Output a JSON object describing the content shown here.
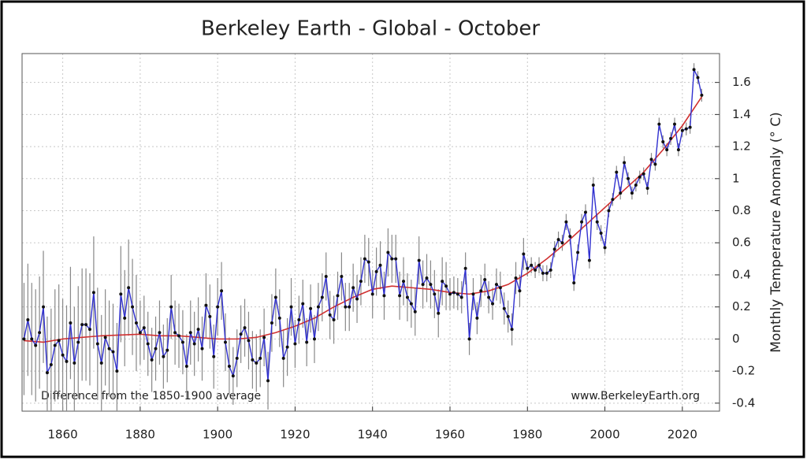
{
  "chart_data": {
    "type": "line",
    "title": "Berkeley Earth - Global - October",
    "ylabel": "Monthly Temperature Anomaly (° C)",
    "annotations": [
      "Difference from the 1850-1900 average",
      "www.BerkeleyEarth.org"
    ],
    "x": [
      1850,
      1851,
      1852,
      1853,
      1854,
      1855,
      1856,
      1857,
      1858,
      1859,
      1860,
      1861,
      1862,
      1863,
      1864,
      1865,
      1866,
      1867,
      1868,
      1869,
      1870,
      1871,
      1872,
      1873,
      1874,
      1875,
      1876,
      1877,
      1878,
      1879,
      1880,
      1881,
      1882,
      1883,
      1884,
      1885,
      1886,
      1887,
      1888,
      1889,
      1890,
      1891,
      1892,
      1893,
      1894,
      1895,
      1896,
      1897,
      1898,
      1899,
      1900,
      1901,
      1902,
      1903,
      1904,
      1905,
      1906,
      1907,
      1908,
      1909,
      1910,
      1911,
      1912,
      1913,
      1914,
      1915,
      1916,
      1917,
      1918,
      1919,
      1920,
      1921,
      1922,
      1923,
      1924,
      1925,
      1926,
      1927,
      1928,
      1929,
      1930,
      1931,
      1932,
      1933,
      1934,
      1935,
      1936,
      1937,
      1938,
      1939,
      1940,
      1941,
      1942,
      1943,
      1944,
      1945,
      1946,
      1947,
      1948,
      1949,
      1950,
      1951,
      1952,
      1953,
      1954,
      1955,
      1956,
      1957,
      1958,
      1959,
      1960,
      1961,
      1962,
      1963,
      1964,
      1965,
      1966,
      1967,
      1968,
      1969,
      1970,
      1971,
      1972,
      1973,
      1974,
      1975,
      1976,
      1977,
      1978,
      1979,
      1980,
      1981,
      1982,
      1983,
      1984,
      1985,
      1986,
      1987,
      1988,
      1989,
      1990,
      1991,
      1992,
      1993,
      1994,
      1995,
      1996,
      1997,
      1998,
      1999,
      2000,
      2001,
      2002,
      2003,
      2004,
      2005,
      2006,
      2007,
      2008,
      2009,
      2010,
      2011,
      2012,
      2013,
      2014,
      2015,
      2016,
      2017,
      2018,
      2019,
      2020,
      2021,
      2022,
      2023,
      2024,
      2025
    ],
    "values": [
      0.0,
      0.12,
      0.0,
      -0.04,
      0.04,
      0.2,
      -0.21,
      -0.16,
      -0.04,
      -0.01,
      -0.1,
      -0.14,
      0.1,
      -0.15,
      -0.02,
      0.09,
      0.09,
      0.06,
      0.29,
      -0.03,
      -0.15,
      0.01,
      -0.06,
      -0.08,
      -0.2,
      0.28,
      0.13,
      0.32,
      0.2,
      0.1,
      0.04,
      0.07,
      -0.03,
      -0.13,
      -0.06,
      0.04,
      -0.11,
      -0.07,
      0.2,
      0.04,
      0.02,
      -0.02,
      -0.17,
      0.04,
      -0.03,
      0.06,
      -0.06,
      0.21,
      0.14,
      -0.11,
      0.2,
      0.3,
      -0.02,
      -0.17,
      -0.23,
      -0.12,
      0.03,
      0.07,
      -0.01,
      -0.13,
      -0.15,
      -0.12,
      0.01,
      -0.26,
      0.1,
      0.26,
      0.13,
      -0.12,
      -0.05,
      0.2,
      -0.03,
      0.12,
      0.22,
      -0.02,
      0.19,
      0.0,
      0.2,
      0.26,
      0.39,
      0.15,
      0.12,
      0.27,
      0.39,
      0.2,
      0.2,
      0.32,
      0.25,
      0.36,
      0.5,
      0.48,
      0.28,
      0.42,
      0.46,
      0.27,
      0.54,
      0.5,
      0.5,
      0.27,
      0.36,
      0.26,
      0.22,
      0.17,
      0.49,
      0.34,
      0.38,
      0.34,
      0.28,
      0.16,
      0.36,
      0.33,
      0.28,
      0.29,
      0.28,
      0.26,
      0.44,
      0.0,
      0.28,
      0.13,
      0.3,
      0.37,
      0.26,
      0.22,
      0.34,
      0.32,
      0.19,
      0.14,
      0.06,
      0.38,
      0.3,
      0.53,
      0.44,
      0.46,
      0.43,
      0.46,
      0.41,
      0.41,
      0.43,
      0.56,
      0.62,
      0.6,
      0.73,
      0.64,
      0.35,
      0.54,
      0.73,
      0.79,
      0.49,
      0.96,
      0.73,
      0.66,
      0.57,
      0.8,
      0.87,
      1.04,
      0.91,
      1.1,
      1.0,
      0.91,
      0.96,
      1.01,
      1.03,
      0.94,
      1.12,
      1.09,
      1.34,
      1.23,
      1.18,
      1.25,
      1.34,
      1.18,
      1.3,
      1.31,
      1.32,
      1.68,
      1.63,
      1.52
    ],
    "errors": [
      0.35,
      0.35,
      0.35,
      0.35,
      0.35,
      0.35,
      0.35,
      0.35,
      0.35,
      0.35,
      0.35,
      0.35,
      0.35,
      0.35,
      0.35,
      0.35,
      0.35,
      0.35,
      0.35,
      0.35,
      0.3,
      0.3,
      0.3,
      0.3,
      0.3,
      0.3,
      0.3,
      0.3,
      0.3,
      0.3,
      0.2,
      0.2,
      0.2,
      0.2,
      0.2,
      0.2,
      0.2,
      0.2,
      0.2,
      0.2,
      0.2,
      0.2,
      0.2,
      0.2,
      0.2,
      0.2,
      0.2,
      0.2,
      0.2,
      0.2,
      0.18,
      0.18,
      0.18,
      0.18,
      0.18,
      0.18,
      0.18,
      0.18,
      0.18,
      0.18,
      0.18,
      0.18,
      0.18,
      0.18,
      0.18,
      0.18,
      0.18,
      0.18,
      0.18,
      0.18,
      0.15,
      0.15,
      0.15,
      0.15,
      0.15,
      0.15,
      0.15,
      0.15,
      0.15,
      0.15,
      0.15,
      0.15,
      0.15,
      0.15,
      0.15,
      0.15,
      0.15,
      0.15,
      0.15,
      0.15,
      0.15,
      0.15,
      0.15,
      0.15,
      0.15,
      0.15,
      0.15,
      0.15,
      0.15,
      0.15,
      0.15,
      0.15,
      0.15,
      0.15,
      0.15,
      0.15,
      0.15,
      0.15,
      0.15,
      0.15,
      0.1,
      0.1,
      0.1,
      0.1,
      0.1,
      0.1,
      0.1,
      0.1,
      0.1,
      0.1,
      0.1,
      0.1,
      0.1,
      0.1,
      0.1,
      0.1,
      0.1,
      0.1,
      0.1,
      0.1,
      0.05,
      0.05,
      0.05,
      0.05,
      0.05,
      0.05,
      0.05,
      0.05,
      0.05,
      0.05,
      0.05,
      0.05,
      0.05,
      0.05,
      0.05,
      0.05,
      0.05,
      0.05,
      0.05,
      0.05,
      0.04,
      0.04,
      0.04,
      0.04,
      0.04,
      0.04,
      0.04,
      0.04,
      0.04,
      0.04,
      0.04,
      0.04,
      0.04,
      0.04,
      0.04,
      0.04,
      0.04,
      0.04,
      0.04,
      0.04,
      0.04,
      0.04,
      0.04,
      0.04,
      0.04,
      0.04
    ],
    "color": "#3030d0",
    "marker_color": "#111111",
    "error_color": "#888888",
    "trend": {
      "color": "#d03030",
      "x": [
        1850,
        1855,
        1860,
        1865,
        1870,
        1875,
        1880,
        1885,
        1890,
        1895,
        1900,
        1905,
        1910,
        1915,
        1920,
        1925,
        1930,
        1935,
        1940,
        1945,
        1950,
        1955,
        1960,
        1965,
        1970,
        1975,
        1980,
        1985,
        1990,
        1995,
        2000,
        2005,
        2010,
        2015,
        2020,
        2025
      ],
      "values": [
        -0.01,
        -0.02,
        0.0,
        0.01,
        0.02,
        0.025,
        0.03,
        0.02,
        0.02,
        0.01,
        0.0,
        0.0,
        0.01,
        0.04,
        0.08,
        0.13,
        0.2,
        0.26,
        0.31,
        0.33,
        0.32,
        0.31,
        0.29,
        0.28,
        0.3,
        0.34,
        0.41,
        0.5,
        0.6,
        0.71,
        0.82,
        0.93,
        1.04,
        1.18,
        1.33,
        1.51
      ]
    },
    "xlim": [
      1849.5,
      2029.6
    ],
    "ylim": [
      -0.45,
      1.78
    ],
    "xticks": [
      1860,
      1880,
      1900,
      1920,
      1940,
      1960,
      1980,
      2000,
      2020
    ],
    "yticks": [
      -0.4,
      -0.2,
      0,
      0.2,
      0.4,
      0.6,
      0.8,
      1,
      1.2,
      1.4,
      1.6
    ],
    "grid": true
  }
}
